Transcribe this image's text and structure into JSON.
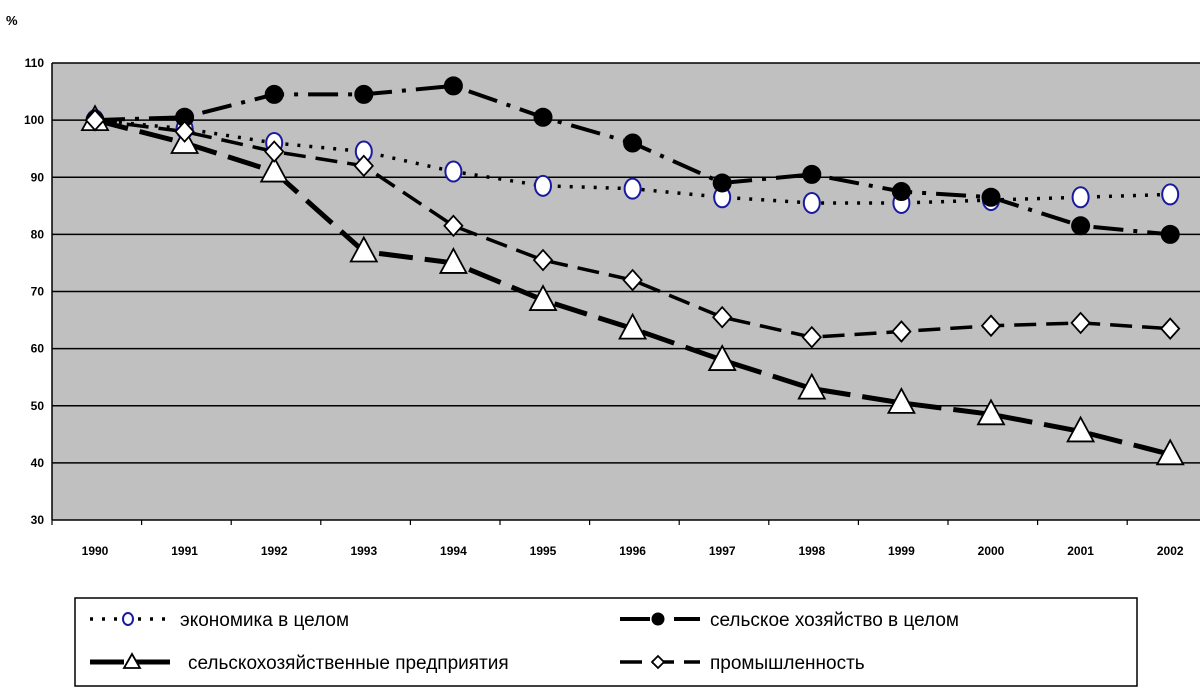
{
  "chart_data": {
    "type": "line",
    "title": "",
    "ylabel": "%",
    "xlabel": "",
    "ylim": [
      30,
      110
    ],
    "yticks": [
      30,
      40,
      50,
      60,
      70,
      80,
      90,
      100,
      110
    ],
    "categories": [
      "1990",
      "1991",
      "1992",
      "1993",
      "1994",
      "1995",
      "1996",
      "1997",
      "1998",
      "1999",
      "2000",
      "2001",
      "2002"
    ],
    "grid": "horizontal",
    "plot_background": "#c0c0c0",
    "legend_position": "bottom",
    "series": [
      {
        "name": "экономика в целом",
        "values": [
          100,
          98.5,
          96,
          94.5,
          91,
          88.5,
          88,
          86.5,
          85.5,
          85.5,
          86,
          86.5,
          87
        ],
        "marker": "circle-open",
        "line": "dotted"
      },
      {
        "name": "сельское хозяйство в целом",
        "values": [
          100,
          100.5,
          104.5,
          104.5,
          106,
          100.5,
          96,
          89,
          90.5,
          87.5,
          86.5,
          81.5,
          80
        ],
        "marker": "circle-filled",
        "line": "dash-dot"
      },
      {
        "name": "сельскохозяйственные предприятия",
        "values": [
          100,
          96,
          91,
          77,
          75,
          68.5,
          63.5,
          58,
          53,
          50.5,
          48.5,
          45.5,
          41.5
        ],
        "marker": "triangle-open",
        "line": "thick-dash"
      },
      {
        "name": "промышленность",
        "values": [
          100,
          98,
          94.5,
          92,
          81.5,
          75.5,
          72,
          65.5,
          62,
          63,
          64,
          64.5,
          63.5
        ],
        "marker": "diamond-open",
        "line": "dash"
      }
    ]
  }
}
